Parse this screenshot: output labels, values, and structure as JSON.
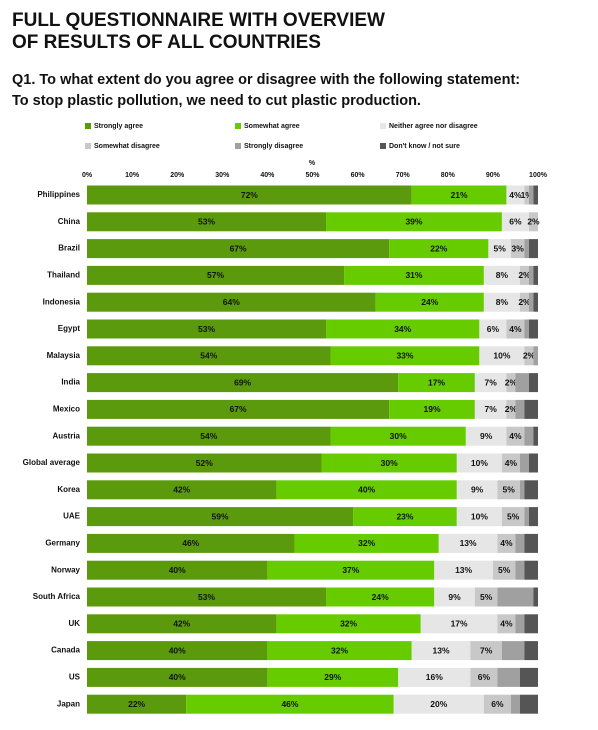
{
  "chart_data": {
    "type": "stacked-bar-horizontal",
    "title": [
      "FULL QUESTIONNAIRE WITH OVERVIEW",
      "OF RESULTS OF ALL COUNTRIES"
    ],
    "subtitle": [
      "Q1. To what extent do you agree or disagree with the following statement:",
      "To stop plastic pollution, we need to cut plastic production."
    ],
    "x_label": "%",
    "legend": "top",
    "grid": false,
    "xlim": [
      0,
      100
    ],
    "xticks": [
      {
        "value": 0,
        "label": "0%"
      },
      {
        "value": 10,
        "label": "10%"
      },
      {
        "value": 20,
        "label": "20%"
      },
      {
        "value": 30,
        "label": "30%"
      },
      {
        "value": 40,
        "label": "40%"
      },
      {
        "value": 50,
        "label": "50%"
      },
      {
        "value": 60,
        "label": "60%"
      },
      {
        "value": 70,
        "label": "70%"
      },
      {
        "value": 80,
        "label": "80%"
      },
      {
        "value": 90,
        "label": "90%"
      },
      {
        "value": 100,
        "label": "100%"
      }
    ],
    "categories": [
      "Philippines",
      "China",
      "Brazil",
      "Thailand",
      "Indonesia",
      "Egypt",
      "Malaysia",
      "India",
      "Mexico",
      "Austria",
      "Global average",
      "Korea",
      "UAE",
      "Germany",
      "Norway",
      "South Africa",
      "UK",
      "Canada",
      "US",
      "Japan"
    ],
    "series": [
      {
        "name": "Strongly agree",
        "color": "#5b9a0c",
        "values": [
          72,
          53,
          67,
          57,
          64,
          53,
          54,
          69,
          67,
          54,
          52,
          42,
          59,
          46,
          40,
          53,
          42,
          40,
          40,
          22
        ],
        "value_labels": [
          "72%",
          "53%",
          "67%",
          "57%",
          "64%",
          "53%",
          "54%",
          "69%",
          "67%",
          "54%",
          "52%",
          "42%",
          "59%",
          "46%",
          "40%",
          "53%",
          "42%",
          "40%",
          "40%",
          "22%"
        ]
      },
      {
        "name": "Somewhat agree",
        "color": "#66cc00",
        "values": [
          21,
          39,
          22,
          31,
          24,
          34,
          33,
          17,
          19,
          30,
          30,
          40,
          23,
          32,
          37,
          24,
          32,
          32,
          29,
          46
        ],
        "value_labels": [
          "21%",
          "39%",
          "22%",
          "31%",
          "24%",
          "34%",
          "33%",
          "17%",
          "19%",
          "30%",
          "30%",
          "40%",
          "23%",
          "32%",
          "37%",
          "24%",
          "32%",
          "32%",
          "29%",
          "46%"
        ]
      },
      {
        "name": "Neither agree nor disagree",
        "color": "#e6e6e6",
        "values": [
          4,
          6,
          5,
          8,
          8,
          6,
          10,
          7,
          7,
          9,
          10,
          9,
          10,
          13,
          13,
          9,
          17,
          13,
          16,
          20
        ],
        "value_labels": [
          "4%",
          "6%",
          "5%",
          "8%",
          "8%",
          "6%",
          "10%",
          "7%",
          "7%",
          "9%",
          "10%",
          "9%",
          "10%",
          "13%",
          "13%",
          "9%",
          "17%",
          "13%",
          "16%",
          "20%"
        ]
      },
      {
        "name": "Somewhat disagree",
        "color": "#c8c8c8",
        "values": [
          1,
          2,
          3,
          2,
          2,
          4,
          2,
          2,
          2,
          4,
          4,
          5,
          5,
          4,
          5,
          5,
          4,
          7,
          6,
          6
        ],
        "value_labels": [
          "1%",
          "2%",
          "3%",
          "2%",
          "2%",
          "4%",
          "2%",
          "2%",
          "2%",
          "4%",
          "4%",
          "5%",
          "5%",
          "4%",
          "5%",
          "5%",
          "4%",
          "7%",
          "6%",
          "6%"
        ]
      },
      {
        "name": "Strongly disagree",
        "color": "#a0a0a0",
        "values": [
          1,
          0,
          1,
          1,
          1,
          1,
          1,
          3,
          2,
          2,
          2,
          1,
          1,
          2,
          2,
          8,
          2,
          5,
          5,
          2
        ],
        "value_labels": [
          null,
          null,
          null,
          null,
          null,
          null,
          null,
          null,
          null,
          null,
          null,
          null,
          null,
          null,
          null,
          null,
          null,
          null,
          null,
          null
        ]
      },
      {
        "name": "Don't know / not sure",
        "color": "#555555",
        "values": [
          1,
          0,
          2,
          1,
          1,
          2,
          0,
          2,
          3,
          1,
          2,
          3,
          2,
          3,
          3,
          1,
          3,
          3,
          4,
          4
        ],
        "value_labels": [
          null,
          null,
          null,
          null,
          null,
          null,
          null,
          null,
          null,
          null,
          null,
          null,
          null,
          null,
          null,
          null,
          null,
          null,
          null,
          null
        ]
      }
    ]
  }
}
